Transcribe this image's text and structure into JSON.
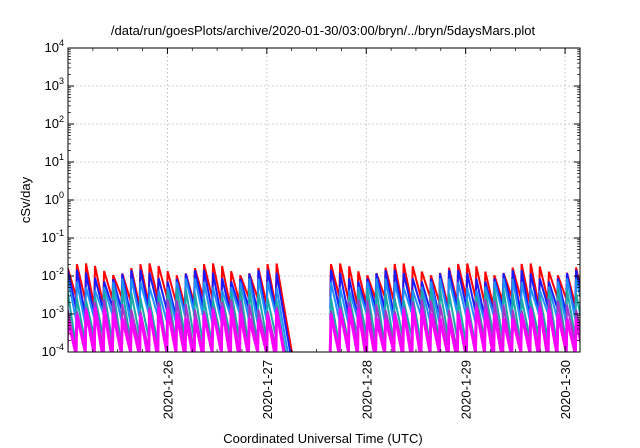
{
  "chart_data": {
    "type": "line",
    "title": "/data/run/goesPlots/archive/2020-01-30/03:00/bryn/../bryn/5daysMars.plot",
    "xlabel": "Coordinated Universal Time (UTC)",
    "ylabel": "cSv/day",
    "y_scale": "log",
    "ylim": [
      0.0001,
      10000
    ],
    "y_tick_exponents": [
      -4,
      -3,
      -2,
      -1,
      0,
      1,
      2,
      3,
      4
    ],
    "xlim_days": [
      0,
      5.15
    ],
    "x_ticks": [
      {
        "label": "2020-1-26",
        "day": 1.0
      },
      {
        "label": "2020-1-27",
        "day": 2.0
      },
      {
        "label": "2020-1-28",
        "day": 3.0
      },
      {
        "label": "2020-1-29",
        "day": 4.0
      },
      {
        "label": "2020-1-30",
        "day": 5.0
      }
    ],
    "grid": true,
    "data_gap_days": [
      2.1,
      2.62
    ],
    "sawtooth_period_days": 0.0913,
    "series": [
      {
        "color": "#ff0000",
        "peak": 0.016,
        "trough": 0.0022,
        "width": 2
      },
      {
        "color": "#1a1aff",
        "peak": 0.011,
        "trough": 0.0012,
        "width": 2
      },
      {
        "color": "#1e90ff",
        "peak": 0.0065,
        "trough": 0.0008,
        "width": 2
      },
      {
        "color": "#1aaaaa",
        "peak": 0.0035,
        "trough": 0.0002,
        "width": 2
      },
      {
        "color": "#aa33cc",
        "peak": 0.0018,
        "trough": 0.00012,
        "width": 2
      },
      {
        "color": "#ff00ff",
        "peak": 0.0011,
        "trough": 8e-05,
        "width": 3
      }
    ]
  }
}
